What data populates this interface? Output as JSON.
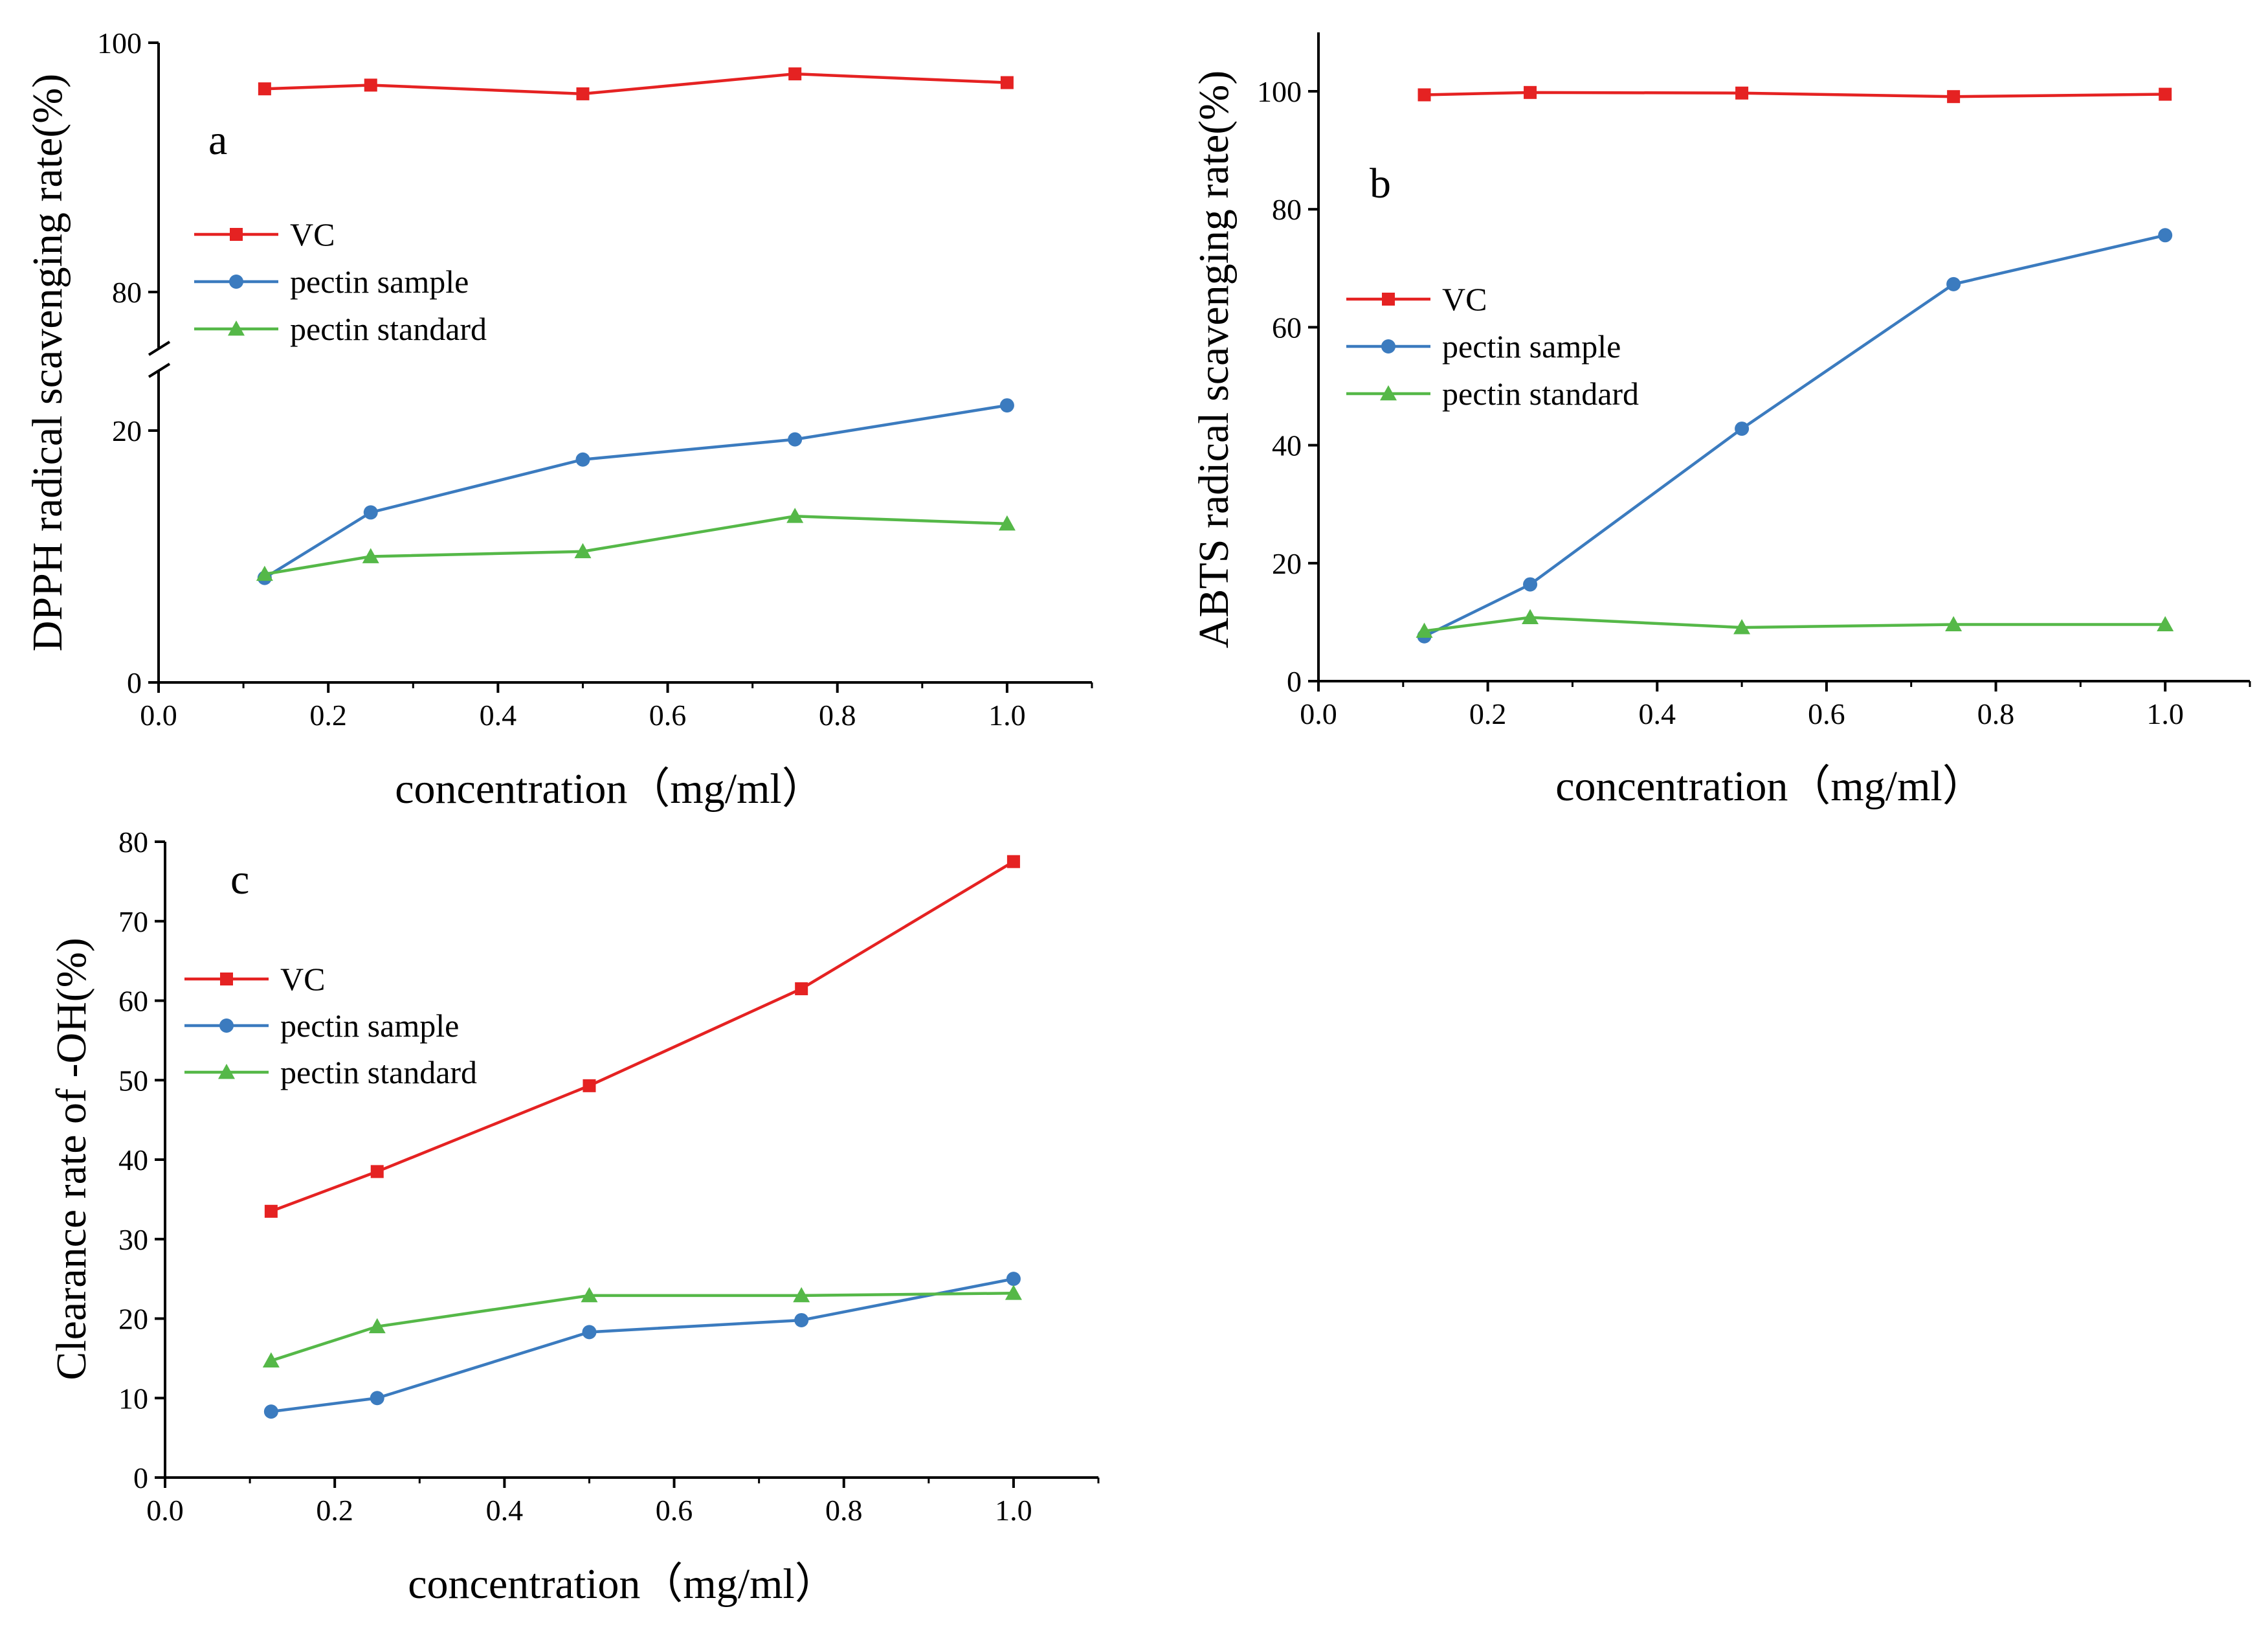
{
  "chart_data": [
    {
      "panel": "a",
      "type": "line",
      "xlabel": "concentration（mg/ml）",
      "ylabel": "DPPH radical scavenging rate(%)",
      "xlim": [
        0,
        1.1
      ],
      "xticks": [
        "0.0",
        "0.2",
        "0.4",
        "0.6",
        "0.8",
        "1.0"
      ],
      "ylim_upper": [
        77,
        100
      ],
      "ylim_lower": [
        0,
        24
      ],
      "yticks": [
        "0",
        "20",
        "80",
        "100"
      ],
      "axis_break": true,
      "x": [
        0.125,
        0.25,
        0.5,
        0.75,
        1.0
      ],
      "series": [
        {
          "name": "VC",
          "color": "#e52222",
          "marker": "square",
          "values": [
            96.3,
            96.6,
            95.9,
            97.5,
            96.8
          ]
        },
        {
          "name": "pectin sample",
          "color": "#3b7bbf",
          "marker": "circle",
          "values": [
            8.3,
            13.5,
            17.7,
            19.3,
            22.0
          ]
        },
        {
          "name": "pectin standard",
          "color": "#55b848",
          "marker": "triangle",
          "values": [
            8.6,
            10.0,
            10.4,
            13.2,
            12.6
          ]
        }
      ]
    },
    {
      "panel": "b",
      "type": "line",
      "xlabel": "concentration（mg/ml）",
      "ylabel": "ABTS radical scavenging rate(%)",
      "xlim": [
        0,
        1.1
      ],
      "xticks": [
        "0.0",
        "0.2",
        "0.4",
        "0.6",
        "0.8",
        "1.0"
      ],
      "ylim": [
        0,
        110
      ],
      "yticks": [
        "0",
        "20",
        "40",
        "60",
        "80",
        "100"
      ],
      "x": [
        0.125,
        0.25,
        0.5,
        0.75,
        1.0
      ],
      "series": [
        {
          "name": "VC",
          "color": "#e52222",
          "marker": "square",
          "values": [
            99.4,
            99.8,
            99.7,
            99.1,
            99.5
          ]
        },
        {
          "name": "pectin sample",
          "color": "#3b7bbf",
          "marker": "circle",
          "values": [
            7.6,
            16.4,
            42.8,
            67.3,
            75.6
          ]
        },
        {
          "name": "pectin standard",
          "color": "#55b848",
          "marker": "triangle",
          "values": [
            8.5,
            10.8,
            9.1,
            9.6,
            9.6
          ]
        }
      ]
    },
    {
      "panel": "c",
      "type": "line",
      "xlabel": "concentration（mg/ml）",
      "ylabel": "Clearance rate of -OH(%)",
      "xlim": [
        0,
        1.1
      ],
      "xticks": [
        "0.0",
        "0.2",
        "0.4",
        "0.6",
        "0.8",
        "1.0"
      ],
      "ylim": [
        0,
        80
      ],
      "yticks": [
        "0",
        "10",
        "20",
        "30",
        "40",
        "50",
        "60",
        "70",
        "80"
      ],
      "x": [
        0.125,
        0.25,
        0.5,
        0.75,
        1.0
      ],
      "series": [
        {
          "name": "VC",
          "color": "#e52222",
          "marker": "square",
          "values": [
            33.5,
            38.5,
            49.3,
            61.5,
            77.5
          ]
        },
        {
          "name": "pectin sample",
          "color": "#3b7bbf",
          "marker": "circle",
          "values": [
            8.3,
            10.0,
            18.3,
            19.8,
            25.0
          ]
        },
        {
          "name": "pectin standard",
          "color": "#55b848",
          "marker": "triangle",
          "values": [
            14.7,
            19.0,
            22.9,
            22.9,
            23.2
          ]
        }
      ]
    }
  ]
}
